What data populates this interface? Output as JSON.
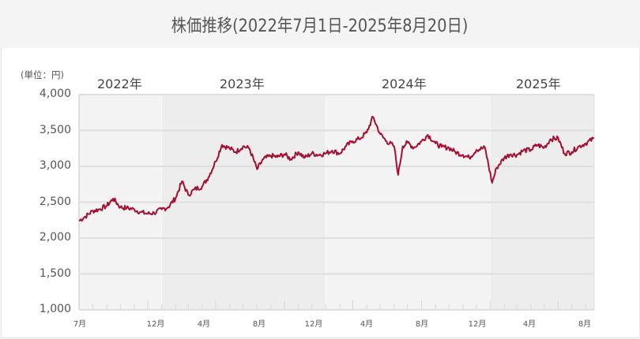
{
  "title": "株価推移(2022年7月1日-2025年8月20日)",
  "unit_label": "(単位：円)",
  "colors": {
    "line": "#a50f31",
    "band_light": "#f3f3f3",
    "band_dark": "#ededed",
    "grid": "#dedede",
    "page_bg": "#f4f4f4",
    "panel_bg": "#ffffff"
  },
  "year_labels": [
    "2022年",
    "2023年",
    "2024年",
    "2025年"
  ],
  "y_ticks": [
    "4,000",
    "3,500",
    "3,000",
    "2,500",
    "2,000",
    "1,500",
    "1,000"
  ],
  "x_ticks": [
    "7月",
    "12月",
    "4月",
    "8月",
    "12月",
    "4月",
    "8月",
    "12月",
    "4月",
    "8月"
  ],
  "chart_data": {
    "type": "line",
    "title": "株価推移(2022年7月1日-2025年8月20日)",
    "xlabel": "",
    "ylabel": "(単位：円)",
    "ylim": [
      1000,
      4000
    ],
    "y_ticks": [
      1000,
      1500,
      2000,
      2500,
      3000,
      3500,
      4000
    ],
    "x_range": [
      "2022-07-01",
      "2025-08-20"
    ],
    "x_tick_labels": [
      "7月",
      "12月",
      "4月",
      "8月",
      "12月",
      "4月",
      "8月",
      "12月",
      "4月",
      "8月"
    ],
    "year_bands": [
      {
        "label": "2022年",
        "start": "2022-07-01",
        "end": "2022-12-31"
      },
      {
        "label": "2023年",
        "start": "2023-01-01",
        "end": "2023-12-31"
      },
      {
        "label": "2024年",
        "start": "2024-01-01",
        "end": "2024-12-31"
      },
      {
        "label": "2025年",
        "start": "2025-01-01",
        "end": "2025-08-20"
      }
    ],
    "grid": true,
    "legend": "none",
    "series": [
      {
        "name": "株価",
        "x": [
          "2022-07-01",
          "2022-07-15",
          "2022-08-01",
          "2022-08-15",
          "2022-09-01",
          "2022-09-15",
          "2022-10-01",
          "2022-10-15",
          "2022-11-01",
          "2022-11-15",
          "2022-12-01",
          "2022-12-15",
          "2023-01-01",
          "2023-01-15",
          "2023-02-01",
          "2023-02-15",
          "2023-03-01",
          "2023-03-15",
          "2023-04-01",
          "2023-04-15",
          "2023-05-01",
          "2023-05-15",
          "2023-06-01",
          "2023-06-15",
          "2023-07-01",
          "2023-07-15",
          "2023-08-01",
          "2023-08-15",
          "2023-09-01",
          "2023-09-15",
          "2023-10-01",
          "2023-10-15",
          "2023-11-01",
          "2023-11-15",
          "2023-12-01",
          "2023-12-15",
          "2024-01-01",
          "2024-01-15",
          "2024-02-01",
          "2024-02-15",
          "2024-03-01",
          "2024-03-15",
          "2024-04-01",
          "2024-04-15",
          "2024-05-01",
          "2024-05-15",
          "2024-06-01",
          "2024-06-10",
          "2024-06-20",
          "2024-07-01",
          "2024-07-15",
          "2024-08-01",
          "2024-08-15",
          "2024-09-01",
          "2024-09-15",
          "2024-10-01",
          "2024-10-15",
          "2024-11-01",
          "2024-11-15",
          "2024-12-01",
          "2024-12-20",
          "2025-01-05",
          "2025-01-15",
          "2025-02-01",
          "2025-02-15",
          "2025-03-01",
          "2025-03-15",
          "2025-04-01",
          "2025-04-15",
          "2025-05-01",
          "2025-05-15",
          "2025-06-01",
          "2025-06-15",
          "2025-07-01",
          "2025-07-15",
          "2025-08-01",
          "2025-08-20"
        ],
        "values": [
          2240,
          2300,
          2380,
          2400,
          2450,
          2550,
          2430,
          2420,
          2400,
          2360,
          2340,
          2350,
          2400,
          2430,
          2560,
          2790,
          2600,
          2680,
          2720,
          2850,
          3070,
          3300,
          3250,
          3200,
          3280,
          3250,
          2960,
          3100,
          3150,
          3130,
          3170,
          3100,
          3200,
          3120,
          3180,
          3160,
          3180,
          3220,
          3180,
          3280,
          3350,
          3380,
          3470,
          3690,
          3450,
          3350,
          3280,
          2880,
          3280,
          3330,
          3260,
          3350,
          3440,
          3320,
          3270,
          3260,
          3200,
          3160,
          3120,
          3230,
          3260,
          2770,
          2980,
          3120,
          3170,
          3160,
          3220,
          3230,
          3300,
          3260,
          3380,
          3390,
          3180,
          3200,
          3270,
          3320,
          3390
        ]
      }
    ]
  }
}
